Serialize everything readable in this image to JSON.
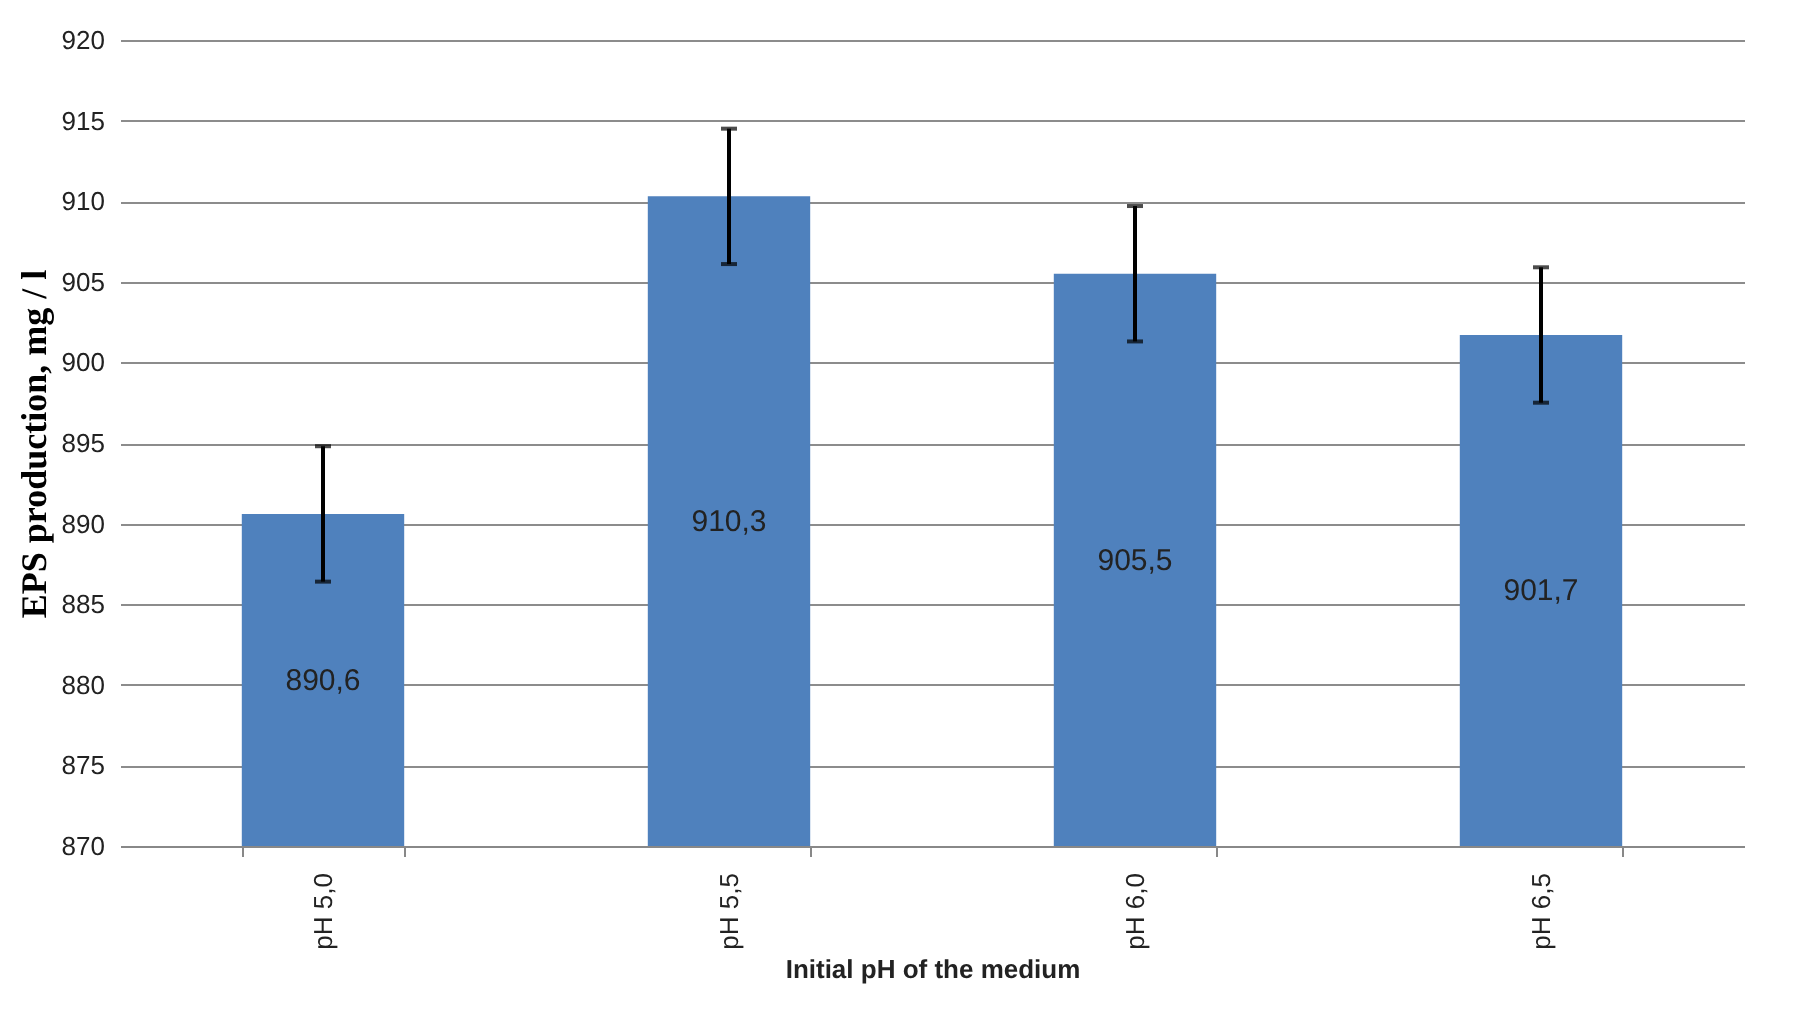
{
  "chart_data": {
    "type": "bar",
    "xlabel": "Initial pH of the medium",
    "ylabel": "EPS production, mg / l",
    "categories": [
      "pH 5,0",
      "pH 5,5",
      "pH 6,0",
      "pH 6,5"
    ],
    "values": [
      890.6,
      910.3,
      905.5,
      901.7
    ],
    "color": "#4f81bd",
    "errors": [
      4.2,
      4.2,
      4.2,
      4.2
    ],
    "value_labels": [
      "890,6",
      "910,3",
      "905,5",
      "901,7"
    ],
    "ylim": [
      870,
      920
    ],
    "yticks": [
      870,
      875,
      880,
      885,
      890,
      895,
      900,
      905,
      910,
      915,
      920
    ],
    "grid": "y"
  }
}
